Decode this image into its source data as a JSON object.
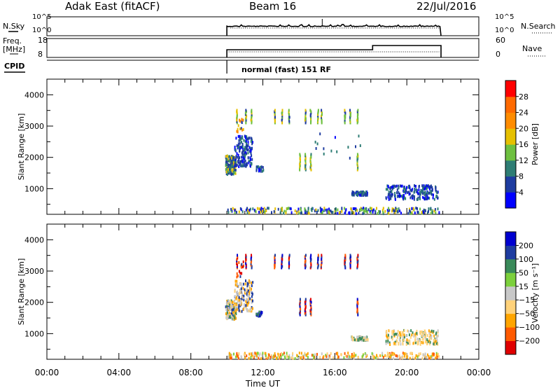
{
  "header": {
    "station": "Adak East (fitACF)",
    "beam": "Beam 16",
    "date": "22/Jul/2016"
  },
  "labels": {
    "nsky": "N.Sky",
    "nsearch": "N.Search",
    "freq_line1": "Freq.",
    "freq_line2": "[MHz]",
    "nave": "Nave",
    "cpid": "CPID",
    "cpid_value": "normal (fast) 151 RF"
  },
  "noise_axis": {
    "left_ticks": [
      "10^5",
      "10^0"
    ],
    "right_ticks": [
      "10^5",
      "10^0"
    ]
  },
  "freq_axis": {
    "left_ticks": [
      "18",
      "8"
    ],
    "right_ticks": [
      "60",
      "0"
    ]
  },
  "chart_data": [
    {
      "type": "heatmap",
      "panel": "power",
      "ylabel": "Slant Range [km]",
      "yticks": [
        1000,
        2000,
        3000,
        4000
      ],
      "ylim": [
        180,
        4500
      ],
      "xlim": [
        0,
        24
      ],
      "colorbar": {
        "label": "Power [dB]",
        "ticks": [
          "28",
          "24",
          "20",
          "16",
          "12",
          "8",
          "4"
        ],
        "colors": [
          "#0000ff",
          "#1e3ca0",
          "#2e7d74",
          "#6ec040",
          "#e6c000",
          "#ff8c00",
          "#ff6a00",
          "#ff0000"
        ]
      }
    },
    {
      "type": "heatmap",
      "panel": "velocity",
      "ylabel": "Slant Range [km]",
      "yticks": [
        1000,
        2000,
        3000,
        4000
      ],
      "ylim": [
        180,
        4500
      ],
      "xlim": [
        0,
        24
      ],
      "xlabel": "Time UT",
      "xticks": [
        "00:00",
        "04:00",
        "08:00",
        "12:00",
        "16:00",
        "20:00",
        "00:00"
      ],
      "colorbar": {
        "label": "Velocity [m s⁻¹]",
        "ticks": [
          "200",
          "100",
          "50",
          "15",
          "−15",
          "−50",
          "−100",
          "−200"
        ],
        "colors": [
          "#e00000",
          "#ff5a00",
          "#ffa500",
          "#ffd27a",
          "#c8c8c8",
          "#7cd03c",
          "#3a8a5a",
          "#1e3ca0",
          "#0000d0"
        ]
      }
    }
  ]
}
